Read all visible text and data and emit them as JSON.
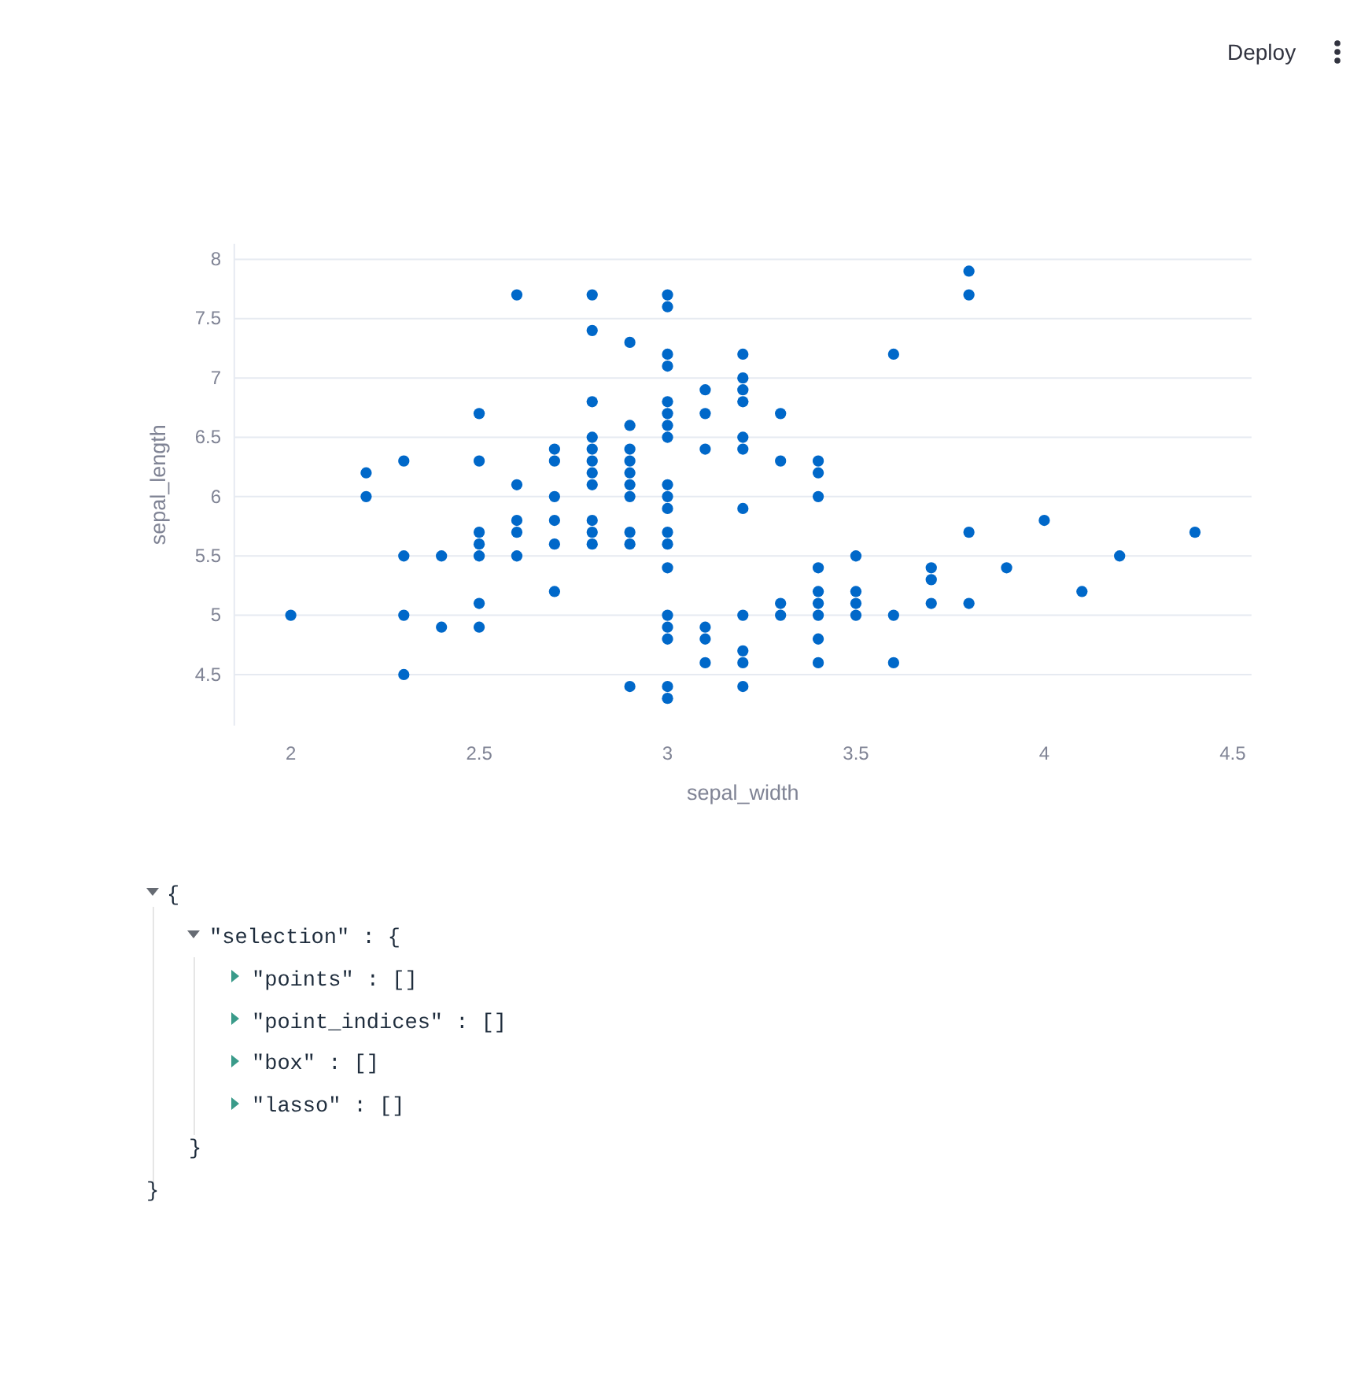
{
  "chart_data": [
    {
      "type": "other",
      "annotations": [
        "Deploy"
      ]
    },
    {
      "type": "scatter",
      "xlabel": "sepal_width",
      "ylabel": "sepal_length",
      "xlim": [
        1.85,
        4.55
      ],
      "ylim": [
        4.07,
        8.13
      ],
      "xticks": [
        2,
        2.5,
        3,
        3.5,
        4,
        4.5
      ],
      "yticks": [
        4.5,
        5,
        5.5,
        6,
        6.5,
        7,
        7.5,
        8
      ],
      "grid": "y",
      "marker": "circle",
      "series": [
        {
          "color": "#0068c9",
          "x": [
            2,
            2.2,
            2.2,
            2.3,
            2.3,
            2.3,
            2.3,
            2.4,
            2.4,
            2.5,
            2.5,
            2.5,
            2.5,
            2.5,
            2.5,
            2.5,
            2.6,
            2.6,
            2.6,
            2.6,
            2.6,
            2.7,
            2.7,
            2.7,
            2.7,
            2.7,
            2.7,
            2.8,
            2.8,
            2.8,
            2.8,
            2.8,
            2.8,
            2.8,
            2.8,
            2.8,
            2.8,
            2.8,
            2.9,
            2.9,
            2.9,
            2.9,
            2.9,
            2.9,
            2.9,
            2.9,
            2.9,
            2.9,
            3,
            3,
            3,
            3,
            3,
            3,
            3,
            3,
            3,
            3,
            3,
            3,
            3,
            3,
            3,
            3,
            3,
            3,
            3,
            3.1,
            3.1,
            3.1,
            3.1,
            3.1,
            3.1,
            3.2,
            3.2,
            3.2,
            3.2,
            3.2,
            3.2,
            3.2,
            3.2,
            3.2,
            3.2,
            3.2,
            3.3,
            3.3,
            3.3,
            3.3,
            3.4,
            3.4,
            3.4,
            3.4,
            3.4,
            3.4,
            3.4,
            3.4,
            3.4,
            3.5,
            3.5,
            3.5,
            3.5,
            3.6,
            3.6,
            3.6,
            3.7,
            3.7,
            3.7,
            3.8,
            3.8,
            3.8,
            3.8,
            3.9,
            4,
            4.1,
            4.2,
            4.4
          ],
          "values": [
            5,
            6.2,
            6,
            6.3,
            5.5,
            5,
            4.5,
            5.5,
            4.9,
            6.7,
            6.3,
            5.7,
            5.6,
            5.5,
            5.1,
            4.9,
            7.7,
            6.1,
            5.8,
            5.7,
            5.5,
            6.4,
            6.3,
            6,
            5.8,
            5.6,
            5.2,
            7.7,
            7.4,
            6.8,
            6.5,
            6.4,
            6.3,
            6.2,
            6.1,
            5.8,
            5.7,
            5.6,
            7.3,
            6.6,
            6.4,
            6.3,
            6.2,
            6.1,
            6,
            5.7,
            5.6,
            4.4,
            7.7,
            7.6,
            7.2,
            7.1,
            6.8,
            6.7,
            6.6,
            6.5,
            6.1,
            6,
            5.9,
            5.7,
            5.6,
            5.4,
            5,
            4.9,
            4.8,
            4.4,
            4.3,
            6.9,
            6.7,
            6.4,
            4.9,
            4.8,
            4.6,
            7.2,
            7,
            6.9,
            6.8,
            6.5,
            6.4,
            5.9,
            5,
            4.7,
            4.6,
            4.4,
            6.7,
            6.3,
            5.1,
            5,
            6.3,
            6.2,
            6,
            5.4,
            5.2,
            5.1,
            5,
            4.8,
            4.6,
            5.5,
            5.2,
            5.1,
            5,
            7.2,
            5,
            4.6,
            5.4,
            5.3,
            5.1,
            7.9,
            7.7,
            5.7,
            5.1,
            5.4,
            5.8,
            5.2,
            5.5,
            5.7
          ]
        }
      ]
    },
    {
      "type": "other",
      "annotations": [
        "{",
        "\"selection\" : {",
        "\"points\" : []",
        "\"point_indices\" : []",
        "\"box\" : []",
        "\"lasso\" : []",
        "}",
        "}"
      ]
    }
  ]
}
